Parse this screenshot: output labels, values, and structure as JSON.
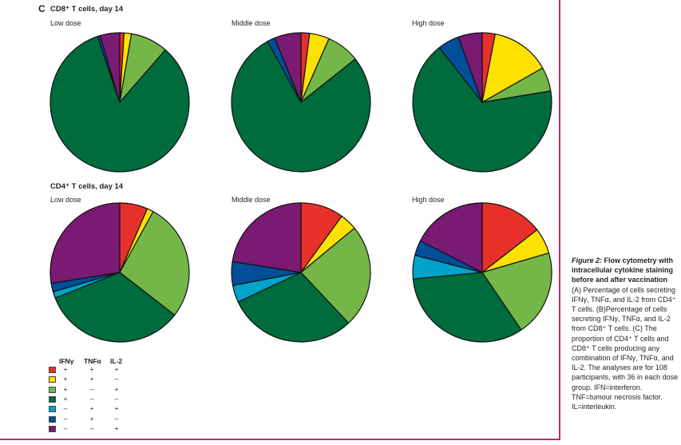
{
  "panel_letter": "C",
  "colors": {
    "frame": "#b0306e",
    "ifn_tnf_il2": "#e8302a",
    "ifn_tnf": "#fde100",
    "ifn_il2": "#74b648",
    "ifn": "#006b3c",
    "tnf_il2": "#00a3c8",
    "tnf": "#004f98",
    "il2": "#7a1a72"
  },
  "legend": {
    "headers": [
      "IFNγ",
      "TNFα",
      "IL-2"
    ],
    "rows": [
      {
        "color_key": "ifn_tnf_il2",
        "ifn": "+",
        "tnf": "+",
        "il2": "+"
      },
      {
        "color_key": "ifn_tnf",
        "ifn": "+",
        "tnf": "+",
        "il2": "–"
      },
      {
        "color_key": "ifn_il2",
        "ifn": "+",
        "tnf": "–",
        "il2": "+"
      },
      {
        "color_key": "ifn",
        "ifn": "+",
        "tnf": "–",
        "il2": "–"
      },
      {
        "color_key": "tnf_il2",
        "ifn": "–",
        "tnf": "+",
        "il2": "+"
      },
      {
        "color_key": "tnf",
        "ifn": "–",
        "tnf": "+",
        "il2": "–"
      },
      {
        "color_key": "il2",
        "ifn": "–",
        "tnf": "–",
        "il2": "+"
      }
    ]
  },
  "caption": {
    "figure_label": "Figure 2:",
    "title": "Flow cytometry with intracellular cytokine staining before and after vaccination",
    "body": "(A) Percentage of cells secreting IFNγ, TNFα, and IL-2 from CD4⁺ T cells. (B)Percentage of cells secreting IFNγ, TNFα, and IL-2 from CD8⁺ T cells. (C) The proportion of CD4⁺ T cells and CD8⁺ T cells producing any combination of IFNγ, TNFα, and IL-2. The analyses are for 108 participants, with 36 in each dose group. IFN=interferon. TNF=tumour necrosis factor. IL=interleukin."
  },
  "chart_data": [
    {
      "type": "pie",
      "group": "CD8⁺ T cells, day 14",
      "title": "Low dose",
      "categories": [
        "IFNγ+ TNFα+ IL-2+",
        "IFNγ+ TNFα+ IL-2–",
        "IFNγ+ TNFα– IL-2+",
        "IFNγ+ TNFα– IL-2–",
        "IFNγ– TNFα+ IL-2+",
        "IFNγ– TNFα+ IL-2–",
        "IFNγ– TNFα– IL-2+"
      ],
      "values": [
        1.0,
        1.7,
        8.7,
        83.4,
        0.0,
        0.6,
        4.6
      ]
    },
    {
      "type": "pie",
      "group": "CD8⁺ T cells, day 14",
      "title": "Middle dose",
      "categories": [
        "IFNγ+ TNFα+ IL-2+",
        "IFNγ+ TNFα+ IL-2–",
        "IFNγ+ TNFα– IL-2+",
        "IFNγ+ TNFα– IL-2–",
        "IFNγ– TNFα+ IL-2+",
        "IFNγ– TNFα+ IL-2–",
        "IFNγ– TNFα– IL-2+"
      ],
      "values": [
        2.0,
        4.6,
        7.7,
        77.7,
        0.0,
        1.8,
        6.2
      ]
    },
    {
      "type": "pie",
      "group": "CD8⁺ T cells, day 14",
      "title": "High dose",
      "categories": [
        "IFNγ+ TNFα+ IL-2+",
        "IFNγ+ TNFα+ IL-2–",
        "IFNγ+ TNFα– IL-2+",
        "IFNγ+ TNFα– IL-2–",
        "IFNγ– TNFα+ IL-2+",
        "IFNγ– TNFα+ IL-2–",
        "IFNγ– TNFα– IL-2+"
      ],
      "values": [
        3.0,
        13.8,
        5.6,
        67.0,
        0.0,
        5.0,
        5.6
      ]
    },
    {
      "type": "pie",
      "group": "CD4⁺ T cells, day 14",
      "title": "Low dose",
      "categories": [
        "IFNγ+ TNFα+ IL-2+",
        "IFNγ+ TNFα+ IL-2–",
        "IFNγ+ TNFα– IL-2+",
        "IFNγ+ TNFα– IL-2–",
        "IFNγ– TNFα+ IL-2+",
        "IFNγ– TNFα+ IL-2–",
        "IFNγ– TNFα– IL-2+"
      ],
      "values": [
        6.5,
        1.5,
        27.5,
        33.5,
        1.5,
        2.0,
        27.5
      ]
    },
    {
      "type": "pie",
      "group": "CD4⁺ T cells, day 14",
      "title": "Middle dose",
      "categories": [
        "IFNγ+ TNFα+ IL-2+",
        "IFNγ+ TNFα+ IL-2–",
        "IFNγ+ TNFα– IL-2+",
        "IFNγ+ TNFα– IL-2–",
        "IFNγ– TNFα+ IL-2+",
        "IFNγ– TNFα+ IL-2–",
        "IFNγ– TNFα– IL-2+"
      ],
      "values": [
        10.0,
        4.0,
        24.0,
        30.0,
        4.0,
        5.5,
        22.5
      ]
    },
    {
      "type": "pie",
      "group": "CD4⁺ T cells, day 14",
      "title": "High dose",
      "categories": [
        "IFNγ+ TNFα+ IL-2+",
        "IFNγ+ TNFα+ IL-2–",
        "IFNγ+ TNFα– IL-2+",
        "IFNγ+ TNFα– IL-2–",
        "IFNγ– TNFα+ IL-2+",
        "IFNγ– TNFα+ IL-2–",
        "IFNγ– TNFα– IL-2+"
      ],
      "values": [
        14.5,
        6.0,
        20.0,
        33.0,
        5.5,
        3.5,
        17.5
      ]
    }
  ]
}
